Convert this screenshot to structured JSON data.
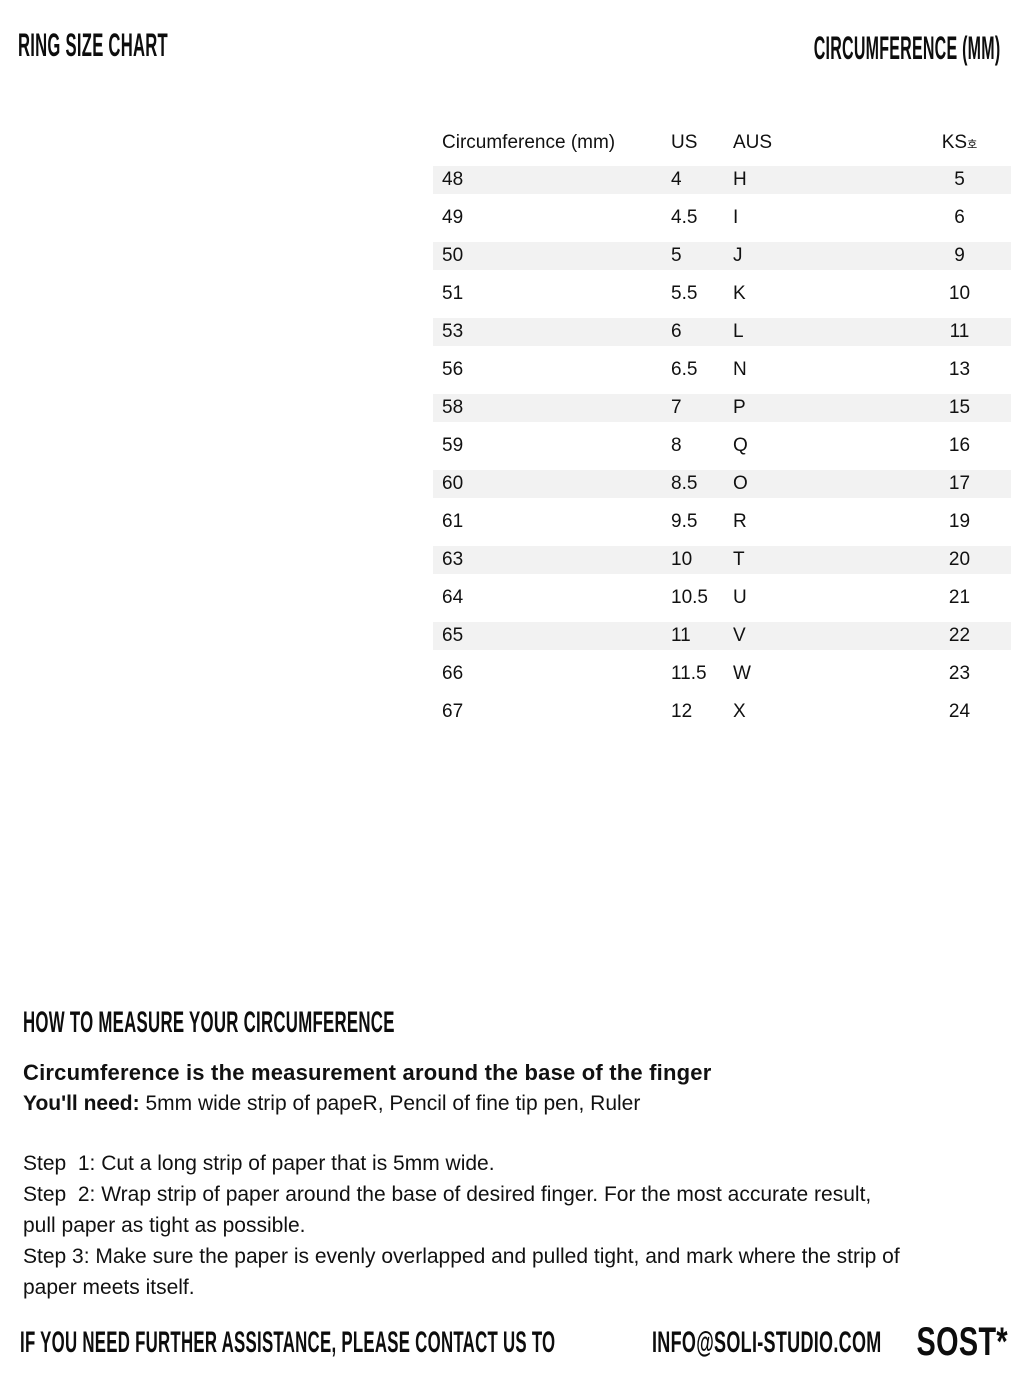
{
  "header": {
    "title": "RING SIZE CHART",
    "subtitle": "CIRCUMFERENCE (MM)"
  },
  "table": {
    "columns": {
      "circumference": "Circumference (mm)",
      "us": "US",
      "aus": "AUS",
      "ks": "KS",
      "ks_suffix": "호"
    },
    "rows": [
      {
        "circumference": "48",
        "us": "4",
        "aus": "H",
        "ks": "5",
        "shaded": true
      },
      {
        "circumference": "49",
        "us": "4.5",
        "aus": "I",
        "ks": "6",
        "shaded": false
      },
      {
        "circumference": "50",
        "us": "5",
        "aus": "J",
        "ks": "9",
        "shaded": true
      },
      {
        "circumference": "51",
        "us": "5.5",
        "aus": "K",
        "ks": "10",
        "shaded": false
      },
      {
        "circumference": "53",
        "us": "6",
        "aus": "L",
        "ks": "11",
        "shaded": true
      },
      {
        "circumference": "56",
        "us": "6.5",
        "aus": "N",
        "ks": "13",
        "shaded": false
      },
      {
        "circumference": "58",
        "us": "7",
        "aus": "P",
        "ks": "15",
        "shaded": true
      },
      {
        "circumference": "59",
        "us": "8",
        "aus": "Q",
        "ks": "16",
        "shaded": false
      },
      {
        "circumference": "60",
        "us": "8.5",
        "aus": "O",
        "ks": "17",
        "shaded": true
      },
      {
        "circumference": "61",
        "us": "9.5",
        "aus": "R",
        "ks": "19",
        "shaded": false
      },
      {
        "circumference": "63",
        "us": "10",
        "aus": "T",
        "ks": "20",
        "shaded": true
      },
      {
        "circumference": "64",
        "us": "10.5",
        "aus": "U",
        "ks": "21",
        "shaded": false
      },
      {
        "circumference": "65",
        "us": "11",
        "aus": "V",
        "ks": "22",
        "shaded": true
      },
      {
        "circumference": "66",
        "us": "11.5",
        "aus": "W",
        "ks": "23",
        "shaded": false
      },
      {
        "circumference": "67",
        "us": "12",
        "aus": "X",
        "ks": "24",
        "shaded": false
      }
    ]
  },
  "howto": {
    "heading": "HOW TO MEASURE YOUR CIRCUMFERENCE",
    "intro": "Circumference is the measurement around the base of the finger",
    "need_label": "You'll need:",
    "need_text": " 5mm wide strip of papeR, Pencil of fine tip pen, Ruler",
    "steps": [
      "Step  1: Cut a long strip of paper that is 5mm wide.",
      "Step  2: Wrap strip of paper around the base of desired finger. For the most accurate result,\npull paper as tight as possible.",
      "Step 3: Make sure the paper is evenly overlapped and pulled tight, and mark where the strip of\npaper meets itself."
    ]
  },
  "footer": {
    "assistance": "IF YOU NEED FURTHER ASSISTANCE, PLEASE CONTACT US TO",
    "email": "INFO@SOLI-STUDIO.COM",
    "brand": "SOST*"
  },
  "colors": {
    "row_shaded": "#f2f2f2",
    "text": "#111111",
    "background": "#ffffff"
  }
}
